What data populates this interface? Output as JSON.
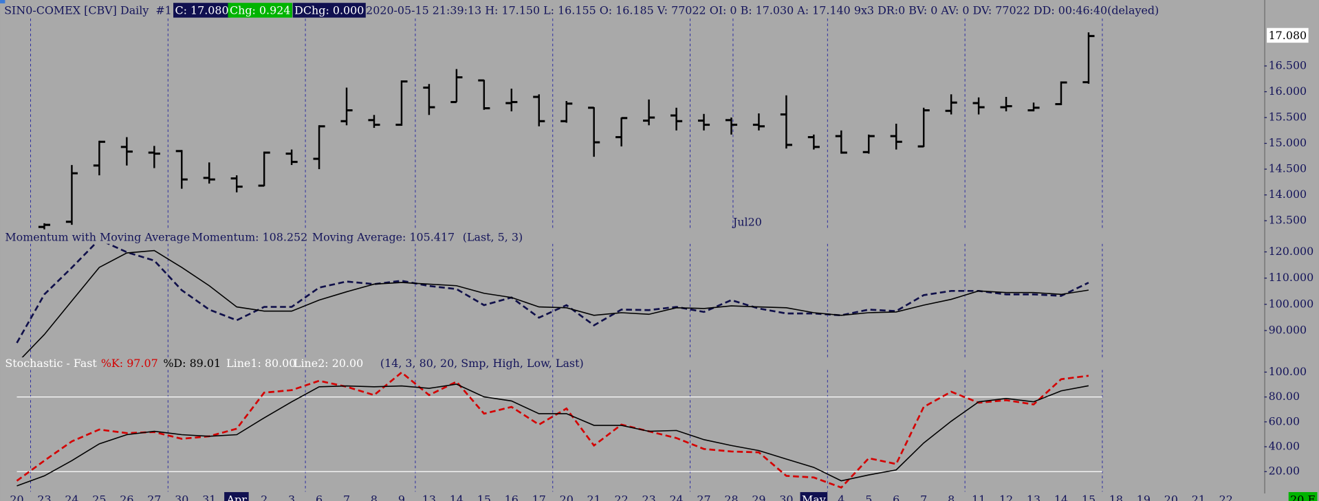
{
  "header": {
    "symbol": "SIN0-COMEX [CBV]",
    "interval": "Daily",
    "window": "#1",
    "close": "C: 17.080",
    "change": "Chg: 0.924",
    "dchange": "DChg: 0.000",
    "details": "2020-05-15 21:39:13 H: 17.150 L: 16.155 O: 16.185 V: 77022 OI: 0 B: 17.030 A: 17.140 9x3 DR:0 BV: 0 AV: 0 DV: 77022 DD: 00:46:40(delayed)"
  },
  "corner_label": "20 E",
  "chart_data": [
    {
      "type": "ohlc",
      "color": "#000000",
      "annotation": "Jul20",
      "categories": [
        "20",
        "23",
        "24",
        "25",
        "26",
        "27",
        "30",
        "31",
        "Apr",
        "2",
        "3",
        "6",
        "7",
        "8",
        "9",
        "13",
        "14",
        "15",
        "16",
        "17",
        "20",
        "21",
        "22",
        "23",
        "24",
        "27",
        "28",
        "29",
        "30",
        "May",
        "4",
        "5",
        "6",
        "7",
        "8",
        "11",
        "12",
        "13",
        "14",
        "15",
        "18",
        "19",
        "20",
        "21",
        "22"
      ],
      "open": [
        null,
        13.38,
        13.48,
        14.57,
        14.93,
        14.82,
        14.85,
        14.33,
        14.32,
        14.18,
        14.8,
        14.7,
        15.43,
        15.45,
        15.36,
        16.08,
        15.8,
        16.22,
        15.78,
        15.9,
        15.43,
        15.69,
        15.12,
        15.44,
        15.54,
        15.44,
        15.45,
        15.36,
        15.56,
        15.12,
        15.14,
        14.83,
        15.14,
        14.94,
        15.63,
        15.78,
        15.7,
        15.64,
        15.76,
        16.185,
        null,
        null,
        null,
        null,
        null
      ],
      "high": [
        null,
        13.45,
        14.58,
        15.05,
        15.12,
        14.95,
        14.87,
        14.63,
        14.38,
        14.84,
        14.88,
        15.35,
        16.08,
        15.55,
        16.22,
        16.15,
        16.44,
        16.23,
        16.06,
        15.95,
        15.82,
        15.7,
        15.5,
        15.85,
        15.69,
        15.57,
        15.5,
        15.58,
        15.93,
        15.17,
        15.25,
        15.17,
        15.38,
        15.69,
        15.95,
        15.89,
        15.9,
        15.79,
        16.2,
        17.15,
        null,
        null,
        null,
        null,
        null
      ],
      "low": [
        null,
        13.33,
        13.42,
        14.38,
        14.57,
        14.52,
        14.12,
        14.22,
        14.05,
        14.17,
        14.58,
        14.5,
        15.35,
        15.3,
        15.34,
        15.55,
        15.8,
        15.65,
        15.62,
        15.33,
        15.4,
        14.74,
        14.94,
        15.35,
        15.25,
        15.25,
        15.17,
        15.25,
        14.9,
        14.88,
        14.8,
        14.8,
        14.88,
        14.93,
        15.56,
        15.56,
        15.62,
        15.62,
        15.74,
        16.155,
        null,
        null,
        null,
        null,
        null
      ],
      "close": [
        null,
        13.42,
        14.42,
        15.03,
        14.84,
        14.8,
        14.3,
        14.3,
        14.16,
        14.82,
        14.64,
        15.33,
        15.64,
        15.36,
        16.2,
        15.7,
        16.28,
        15.68,
        15.8,
        15.43,
        15.77,
        15.02,
        15.49,
        15.5,
        15.43,
        15.36,
        15.36,
        15.33,
        14.97,
        14.93,
        14.82,
        15.14,
        15.03,
        15.64,
        15.79,
        15.7,
        15.72,
        15.69,
        16.18,
        17.08,
        null,
        null,
        null,
        null,
        null
      ],
      "last_price": {
        "value": 17.08,
        "label": "17.080"
      },
      "ylim": [
        13.33,
        17.42
      ],
      "yticks": [
        {
          "value": 13.5,
          "label": "13.500"
        },
        {
          "value": 14,
          "label": "14.000"
        },
        {
          "value": 14.5,
          "label": "14.500"
        },
        {
          "value": 15,
          "label": "15.000"
        },
        {
          "value": 15.5,
          "label": "15.500"
        },
        {
          "value": 16,
          "label": "16.000"
        },
        {
          "value": 16.5,
          "label": "16.500"
        }
      ]
    },
    {
      "type": "line",
      "title": "Momentum with Moving Average",
      "params": "(Last, 5, 3)",
      "series": [
        {
          "name": "Momentum: 108.252",
          "color": "#10104a",
          "dashed": true,
          "values": [
            85.3,
            103.8,
            114,
            124.7,
            119.9,
            116.7,
            105.4,
            98,
            93.9,
            99,
            99,
            106.4,
            108.7,
            107.7,
            109,
            107,
            105.8,
            99.7,
            102.6,
            94.9,
            99.7,
            92,
            98,
            97.8,
            99,
            97.1,
            101.6,
            98.4,
            96.5,
            96.5,
            95.8,
            98,
            97.4,
            103.5,
            105.1,
            105.1,
            103.8,
            103.8,
            103.2,
            108.252,
            null,
            null,
            null,
            null,
            null
          ]
        },
        {
          "name": "Moving Average: 105.417",
          "color": "#000000",
          "dashed": false,
          "values": [
            77.6,
            88.5,
            101.3,
            114.1,
            119.6,
            120.5,
            114.1,
            107.1,
            99,
            97.4,
            97.4,
            101.6,
            104.8,
            107.7,
            108.3,
            107.7,
            107.1,
            104.2,
            102.6,
            99,
            98.7,
            95.8,
            96.8,
            96.2,
            98.7,
            98.4,
            99.4,
            99,
            98.7,
            96.8,
            95.8,
            96.8,
            97.1,
            99.7,
            101.9,
            105.1,
            104.5,
            104.5,
            103.8,
            105.417,
            null,
            null,
            null,
            null,
            null
          ]
        }
      ],
      "ylim": [
        79.8,
        123.1
      ],
      "yticks": [
        {
          "value": 90,
          "label": "90.000"
        },
        {
          "value": 100,
          "label": "100.000"
        },
        {
          "value": 110,
          "label": "110.000"
        },
        {
          "value": 120,
          "label": "120.000"
        }
      ]
    },
    {
      "type": "line",
      "title": "Stochastic - Fast",
      "params": "(14, 3, 80, 20, Smp, High, Low, Last)",
      "series": [
        {
          "name": "%K: 97.07",
          "color": "#d40000",
          "dashed": true,
          "values": [
            12.6,
            28.8,
            44.3,
            53.8,
            51,
            51.8,
            46.4,
            48.4,
            54.5,
            83.5,
            85.5,
            93,
            88.2,
            81.5,
            99.7,
            81.5,
            92.3,
            66.6,
            72,
            57.8,
            70.7,
            41,
            57.8,
            52.4,
            47,
            38.2,
            36.2,
            35.5,
            16.6,
            15.3,
            7.2,
            30.8,
            26.1,
            72,
            84.2,
            75.4,
            77.4,
            74,
            94.3,
            97.07,
            null,
            null,
            null,
            null,
            null
          ]
        },
        {
          "name": "%D: 89.01",
          "color": "#000000",
          "dashed": false,
          "values": [
            8.5,
            16.6,
            28.8,
            42.3,
            49.7,
            52.4,
            49.7,
            48.4,
            49.7,
            63.2,
            76.1,
            88.2,
            88.9,
            88.2,
            88.9,
            86.9,
            90.3,
            80.1,
            76.8,
            66.6,
            66.6,
            57.2,
            57.2,
            52.4,
            53.1,
            45.7,
            41,
            36.9,
            30.1,
            23.4,
            12.6,
            17.3,
            21.4,
            43,
            60.5,
            76.1,
            78.8,
            76.1,
            84.9,
            89.01,
            null,
            null,
            null,
            null,
            null
          ]
        }
      ],
      "hlines": [
        {
          "name": "Line1: 80.00",
          "value": 80,
          "color": "#ffffff"
        },
        {
          "name": "Line2: 20.00",
          "value": 20,
          "color": "#ffffff"
        }
      ],
      "ylim": [
        3.8,
        101.8
      ],
      "yticks": [
        {
          "value": 20,
          "label": "20.00"
        },
        {
          "value": 40,
          "label": "40.00"
        },
        {
          "value": 60,
          "label": "60.00"
        },
        {
          "value": 80,
          "label": "80.00"
        },
        {
          "value": 100,
          "label": "100.00"
        }
      ]
    }
  ]
}
